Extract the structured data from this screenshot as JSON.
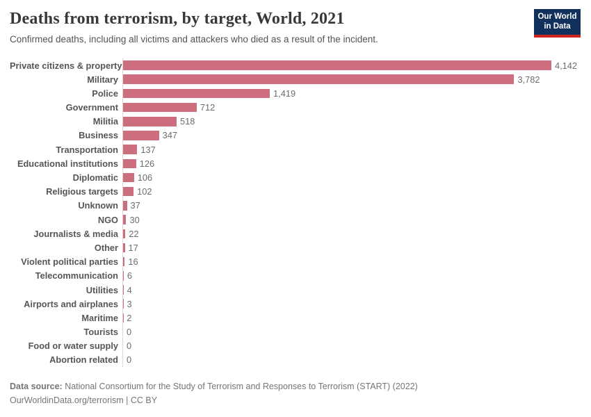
{
  "header": {
    "title": "Deaths from terrorism, by target, World, 2021",
    "subtitle": "Confirmed deaths, including all victims and attackers who died as a result of the incident.",
    "logo": {
      "line1": "Our World",
      "line2": "in Data"
    }
  },
  "chart_data": {
    "type": "bar",
    "orientation": "horizontal",
    "title": "Deaths from terrorism, by target, World, 2021",
    "categories": [
      "Private citizens & property",
      "Military",
      "Police",
      "Government",
      "Militia",
      "Business",
      "Transportation",
      "Educational institutions",
      "Diplomatic",
      "Religious targets",
      "Unknown",
      "NGO",
      "Journalists & media",
      "Other",
      "Violent political parties",
      "Telecommunication",
      "Utilities",
      "Airports and airplanes",
      "Maritime",
      "Tourists",
      "Food or water supply",
      "Abortion related"
    ],
    "values": [
      4142,
      3782,
      1419,
      712,
      518,
      347,
      137,
      126,
      106,
      102,
      37,
      30,
      22,
      17,
      16,
      6,
      4,
      3,
      2,
      0,
      0,
      0
    ],
    "value_labels": [
      "4,142",
      "3,782",
      "1,419",
      "712",
      "518",
      "347",
      "137",
      "126",
      "106",
      "102",
      "37",
      "30",
      "22",
      "17",
      "16",
      "6",
      "4",
      "3",
      "2",
      "0",
      "0",
      "0"
    ],
    "xlim": [
      0,
      4142
    ],
    "grid": false,
    "legend": "none",
    "bar_color": "#cd6e7f",
    "axis_line_color": "#d8d8d8"
  },
  "footer": {
    "source_label": "Data source:",
    "source_text": " National Consortium for the Study of Terrorism and Responses to Terrorism (START) (2022)",
    "attribution": "OurWorldinData.org/terrorism | CC BY"
  },
  "colors": {
    "bar": "#cd6e7f",
    "logo_background": "#12305c",
    "logo_accent": "#d2231e",
    "title_text": "#383838",
    "label_text": "#565656"
  }
}
